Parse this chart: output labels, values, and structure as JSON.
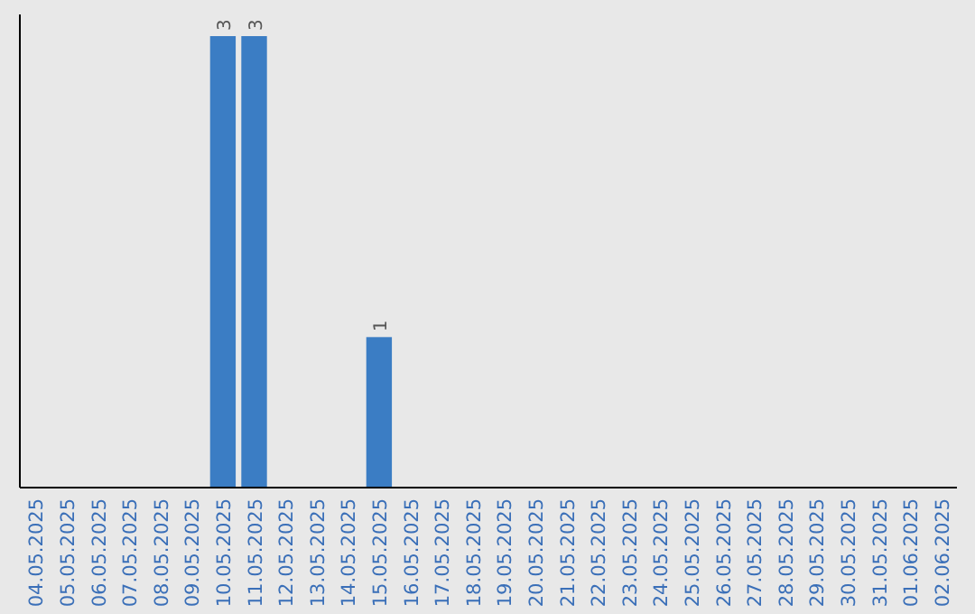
{
  "chart_data": {
    "type": "bar",
    "categories": [
      "04.05.2025",
      "05.05.2025",
      "06.05.2025",
      "07.05.2025",
      "08.05.2025",
      "09.05.2025",
      "10.05.2025",
      "11.05.2025",
      "12.05.2025",
      "13.05.2025",
      "14.05.2025",
      "15.05.2025",
      "16.05.2025",
      "17.05.2025",
      "18.05.2025",
      "19.05.2025",
      "20.05.2025",
      "21.05.2025",
      "22.05.2025",
      "23.05.2025",
      "24.05.2025",
      "25.05.2025",
      "26.05.2025",
      "27.05.2025",
      "28.05.2025",
      "29.05.2025",
      "30.05.2025",
      "31.05.2025",
      "01.06.2025",
      "02.06.2025"
    ],
    "values": [
      0,
      0,
      0,
      0,
      0,
      0,
      3,
      3,
      0,
      0,
      0,
      1,
      0,
      0,
      0,
      0,
      0,
      0,
      0,
      0,
      0,
      0,
      0,
      0,
      0,
      0,
      0,
      0,
      0,
      0
    ],
    "value_labels": [
      null,
      null,
      null,
      null,
      null,
      null,
      "3",
      "3",
      null,
      null,
      null,
      "1",
      null,
      null,
      null,
      null,
      null,
      null,
      null,
      null,
      null,
      null,
      null,
      null,
      null,
      null,
      null,
      null,
      null,
      null
    ],
    "color": "#3b7dc4"
  }
}
